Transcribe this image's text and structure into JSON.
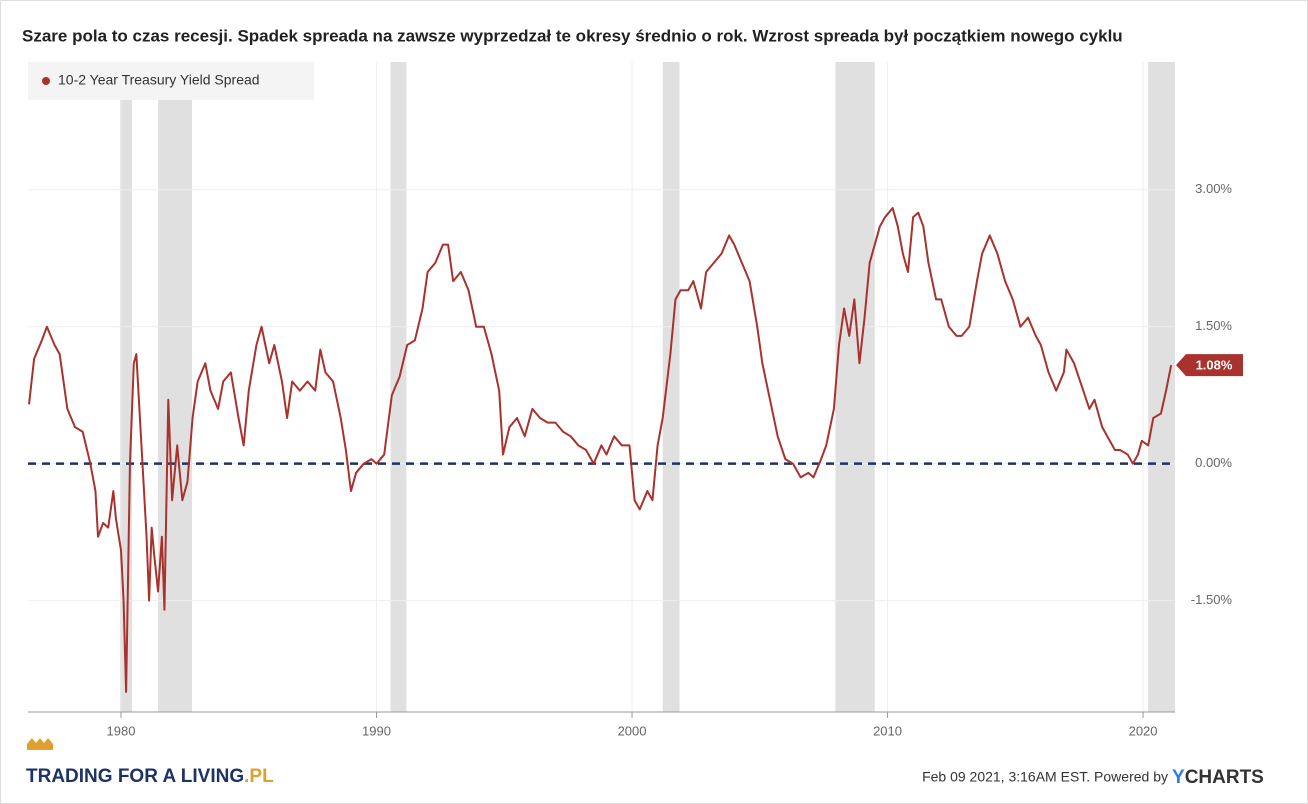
{
  "chart_data": {
    "type": "line",
    "title": "Szare pola to czas recesji. Spadek spreada na zawsze wyprzedzał te okresy średnio o rok. Wzrost spreada był początkiem nowego cyklu",
    "x": [
      1976.4,
      1976.6,
      1976.9,
      1977.1,
      1977.4,
      1977.6,
      1977.9,
      1978.2,
      1978.5,
      1978.8,
      1979.0,
      1979.1,
      1979.3,
      1979.5,
      1979.7,
      1979.8,
      1980.0,
      1980.1,
      1980.2,
      1980.35,
      1980.5,
      1980.6,
      1980.8,
      1981.0,
      1981.1,
      1981.2,
      1981.3,
      1981.45,
      1981.6,
      1981.7,
      1981.85,
      1982.0,
      1982.2,
      1982.4,
      1982.6,
      1982.8,
      1983.0,
      1983.3,
      1983.5,
      1983.8,
      1984.0,
      1984.3,
      1984.6,
      1984.8,
      1985.0,
      1985.3,
      1985.5,
      1985.8,
      1986.0,
      1986.3,
      1986.5,
      1986.7,
      1987.0,
      1987.3,
      1987.6,
      1987.8,
      1988.0,
      1988.3,
      1988.6,
      1988.8,
      1989.0,
      1989.2,
      1989.5,
      1989.8,
      1990.0,
      1990.3,
      1990.6,
      1990.9,
      1991.2,
      1991.5,
      1991.8,
      1992.0,
      1992.3,
      1992.6,
      1992.8,
      1993.0,
      1993.3,
      1993.6,
      1993.9,
      1994.2,
      1994.5,
      1994.8,
      1994.95,
      1995.2,
      1995.5,
      1995.8,
      1996.1,
      1996.4,
      1996.7,
      1997.0,
      1997.3,
      1997.6,
      1997.9,
      1998.2,
      1998.5,
      1998.8,
      1999.0,
      1999.3,
      1999.6,
      1999.9,
      2000.1,
      2000.3,
      2000.6,
      2000.8,
      2001.0,
      2001.2,
      2001.5,
      2001.7,
      2001.9,
      2002.2,
      2002.4,
      2002.7,
      2002.9,
      2003.2,
      2003.5,
      2003.8,
      2004.0,
      2004.3,
      2004.6,
      2004.9,
      2005.1,
      2005.4,
      2005.7,
      2006.0,
      2006.3,
      2006.6,
      2006.9,
      2007.1,
      2007.4,
      2007.6,
      2007.9,
      2008.1,
      2008.3,
      2008.5,
      2008.7,
      2008.9,
      2009.1,
      2009.3,
      2009.5,
      2009.7,
      2009.9,
      2010.2,
      2010.4,
      2010.6,
      2010.8,
      2011.0,
      2011.2,
      2011.4,
      2011.6,
      2011.9,
      2012.1,
      2012.4,
      2012.7,
      2012.9,
      2013.2,
      2013.5,
      2013.7,
      2014.0,
      2014.3,
      2014.6,
      2014.9,
      2015.2,
      2015.5,
      2015.8,
      2016.0,
      2016.3,
      2016.6,
      2016.9,
      2017.0,
      2017.3,
      2017.6,
      2017.9,
      2018.1,
      2018.4,
      2018.7,
      2018.9,
      2019.1,
      2019.4,
      2019.6,
      2019.8,
      2019.95,
      2020.2,
      2020.4,
      2020.7,
      2020.9,
      2021.1
    ],
    "series": [
      {
        "name": "10-2 Year Treasury Yield Spread",
        "color": "#a8322d",
        "values": [
          0.65,
          1.15,
          1.35,
          1.5,
          1.3,
          1.2,
          0.6,
          0.4,
          0.35,
          0.0,
          -0.3,
          -0.8,
          -0.65,
          -0.7,
          -0.3,
          -0.6,
          -0.95,
          -1.5,
          -2.5,
          0.0,
          1.1,
          1.2,
          0.2,
          -0.8,
          -1.5,
          -0.7,
          -1.0,
          -1.4,
          -0.8,
          -1.6,
          0.7,
          -0.4,
          0.2,
          -0.4,
          -0.2,
          0.5,
          0.9,
          1.1,
          0.8,
          0.6,
          0.9,
          1.0,
          0.5,
          0.2,
          0.8,
          1.3,
          1.5,
          1.1,
          1.3,
          0.9,
          0.5,
          0.9,
          0.8,
          0.9,
          0.8,
          1.25,
          1.0,
          0.9,
          0.5,
          0.15,
          -0.3,
          -0.1,
          0.0,
          0.05,
          0.0,
          0.1,
          0.75,
          0.95,
          1.3,
          1.35,
          1.7,
          2.1,
          2.2,
          2.4,
          2.4,
          2.0,
          2.1,
          1.9,
          1.5,
          1.5,
          1.2,
          0.8,
          0.1,
          0.4,
          0.5,
          0.3,
          0.6,
          0.5,
          0.45,
          0.45,
          0.35,
          0.3,
          0.2,
          0.15,
          0.0,
          0.2,
          0.1,
          0.3,
          0.2,
          0.2,
          -0.4,
          -0.5,
          -0.3,
          -0.4,
          0.2,
          0.5,
          1.2,
          1.8,
          1.9,
          1.9,
          2.0,
          1.7,
          2.1,
          2.2,
          2.3,
          2.5,
          2.4,
          2.2,
          2.0,
          1.5,
          1.1,
          0.7,
          0.3,
          0.05,
          0.0,
          -0.15,
          -0.1,
          -0.15,
          0.05,
          0.2,
          0.6,
          1.3,
          1.7,
          1.4,
          1.8,
          1.1,
          1.6,
          2.2,
          2.4,
          2.6,
          2.7,
          2.8,
          2.6,
          2.3,
          2.1,
          2.7,
          2.75,
          2.6,
          2.2,
          1.8,
          1.8,
          1.5,
          1.4,
          1.4,
          1.5,
          2.0,
          2.3,
          2.5,
          2.3,
          2.0,
          1.8,
          1.5,
          1.6,
          1.4,
          1.3,
          1.0,
          0.8,
          1.0,
          1.25,
          1.1,
          0.85,
          0.6,
          0.7,
          0.4,
          0.25,
          0.15,
          0.15,
          0.1,
          0.0,
          0.1,
          0.25,
          0.2,
          0.5,
          0.55,
          0.8,
          1.08
        ]
      }
    ],
    "xlim": [
      1976.36,
      2021.25
    ],
    "xticks": [
      1980,
      1990,
      2000,
      2010,
      2020
    ],
    "ylim": [
      -2.72,
      4.4
    ],
    "yticks": [
      {
        "value": -1.5,
        "label": "-1.50%"
      },
      {
        "value": 0,
        "label": "0.00%"
      },
      {
        "value": 1.5,
        "label": "1.50%"
      },
      {
        "value": 3,
        "label": "3.00%"
      }
    ],
    "grid": true,
    "legend": "top-left",
    "recessions": [
      [
        1979.96,
        1980.43
      ],
      [
        1981.45,
        1982.78
      ],
      [
        1990.55,
        1991.17
      ],
      [
        2001.2,
        2001.86
      ],
      [
        2007.96,
        2009.5
      ],
      [
        2020.2,
        2021.25
      ]
    ],
    "recession_color": "#e0e0e0",
    "reference_line": {
      "value": 0,
      "color": "#1f3266"
    },
    "end_label": {
      "value": 1.08,
      "label": "1.08%"
    },
    "credit": "Feb 09 2021, 3:16AM EST. Powered by",
    "brand_y": "Y",
    "brand_rest": "CHARTS",
    "logo_main": "TRADING FOR A LIVING",
    "logo_suffix": ".PL"
  }
}
